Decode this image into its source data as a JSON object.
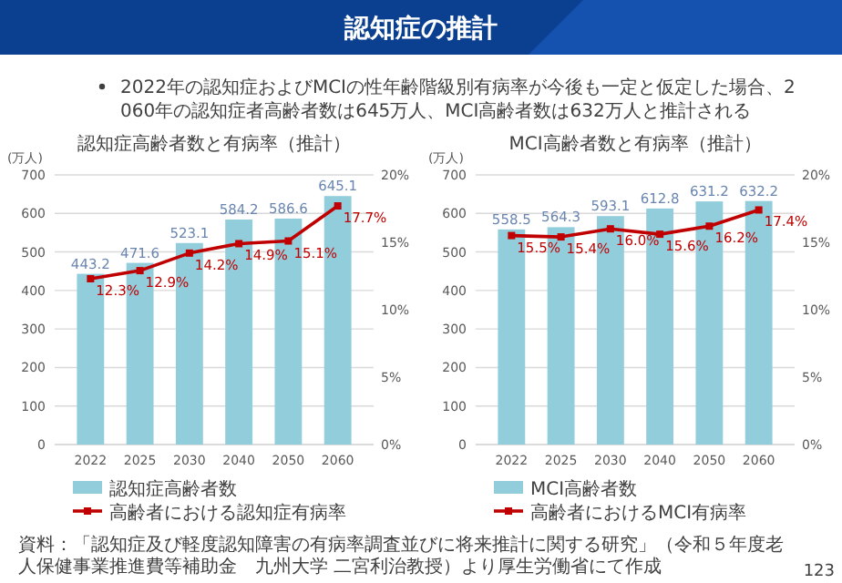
{
  "chart_data": [
    {
      "type": "bar",
      "title": "認知症高齢者数と有病率（推計）",
      "ylabel": "(万人)",
      "annotations": [
        "認知症の推計",
        "2022年の認知症およびMCIの性年齢階級別有病率が今後も一定と仮定した場合、2060年の認知症者高齢者数は645万人、MCI高齢者数は632万人と推計される"
      ],
      "categories": [
        "2022",
        "2025",
        "2030",
        "2040",
        "2050",
        "2060"
      ],
      "series": [
        {
          "name": "認知症高齢者数",
          "color": "#92cddc",
          "values": [
            443.2,
            471.6,
            523.1,
            584.2,
            586.6,
            645.1
          ],
          "value_labels": [
            "443.2",
            "471.6",
            "523.1",
            "584.2",
            "586.6",
            "645.1"
          ]
        },
        {
          "name": "高齢者における認知症有病率",
          "type": "line",
          "axis": "y2",
          "color": "#c00000",
          "marker": "square",
          "values": [
            12.3,
            12.9,
            14.2,
            14.9,
            15.1,
            17.7
          ],
          "value_labels": [
            "12.3%",
            "12.9%",
            "14.2%",
            "14.9%",
            "15.1%",
            "17.7%"
          ]
        }
      ],
      "ylim": [
        0,
        700
      ],
      "yticks": [
        0,
        100,
        200,
        300,
        400,
        500,
        600,
        700
      ],
      "y2lim": [
        0,
        20
      ],
      "y2ticks": [
        {
          "value": 0,
          "label": "0%"
        },
        {
          "value": 5,
          "label": "5%"
        },
        {
          "value": 10,
          "label": "10%"
        },
        {
          "value": 15,
          "label": "15%"
        },
        {
          "value": 20,
          "label": "20%"
        }
      ],
      "grid": "y",
      "legend": "bottom"
    },
    {
      "type": "bar",
      "title": "MCI高齢者数と有病率（推計）",
      "ylabel": "(万人)",
      "annotations": [
        "資料：「認知症及び軽度認知障害の有病率調査並びに将来推計に関する研究」（令和５年度老人保健事業推進費等補助金　九州大学 二宮利治教授）より厚生労働省にて作成",
        "123"
      ],
      "categories": [
        "2022",
        "2025",
        "2030",
        "2040",
        "2050",
        "2060"
      ],
      "series": [
        {
          "name": "MCI高齢者数",
          "color": "#92cddc",
          "values": [
            558.5,
            564.3,
            593.1,
            612.8,
            631.2,
            632.2
          ],
          "value_labels": [
            "558.5",
            "564.3",
            "593.1",
            "612.8",
            "631.2",
            "632.2"
          ]
        },
        {
          "name": "高齢者におけるMCI有病率",
          "type": "line",
          "axis": "y2",
          "color": "#c00000",
          "marker": "square",
          "values": [
            15.5,
            15.4,
            16.0,
            15.6,
            16.2,
            17.4
          ],
          "value_labels": [
            "15.5%",
            "15.4%",
            "16.0%",
            "15.6%",
            "16.2%",
            "17.4%"
          ]
        }
      ],
      "ylim": [
        0,
        700
      ],
      "yticks": [
        0,
        100,
        200,
        300,
        400,
        500,
        600,
        700
      ],
      "y2lim": [
        0,
        20
      ],
      "y2ticks": [
        {
          "value": 0,
          "label": "0%"
        },
        {
          "value": 5,
          "label": "5%"
        },
        {
          "value": 10,
          "label": "10%"
        },
        {
          "value": 15,
          "label": "15%"
        },
        {
          "value": 20,
          "label": "20%"
        }
      ],
      "grid": "y",
      "legend": "bottom"
    }
  ]
}
